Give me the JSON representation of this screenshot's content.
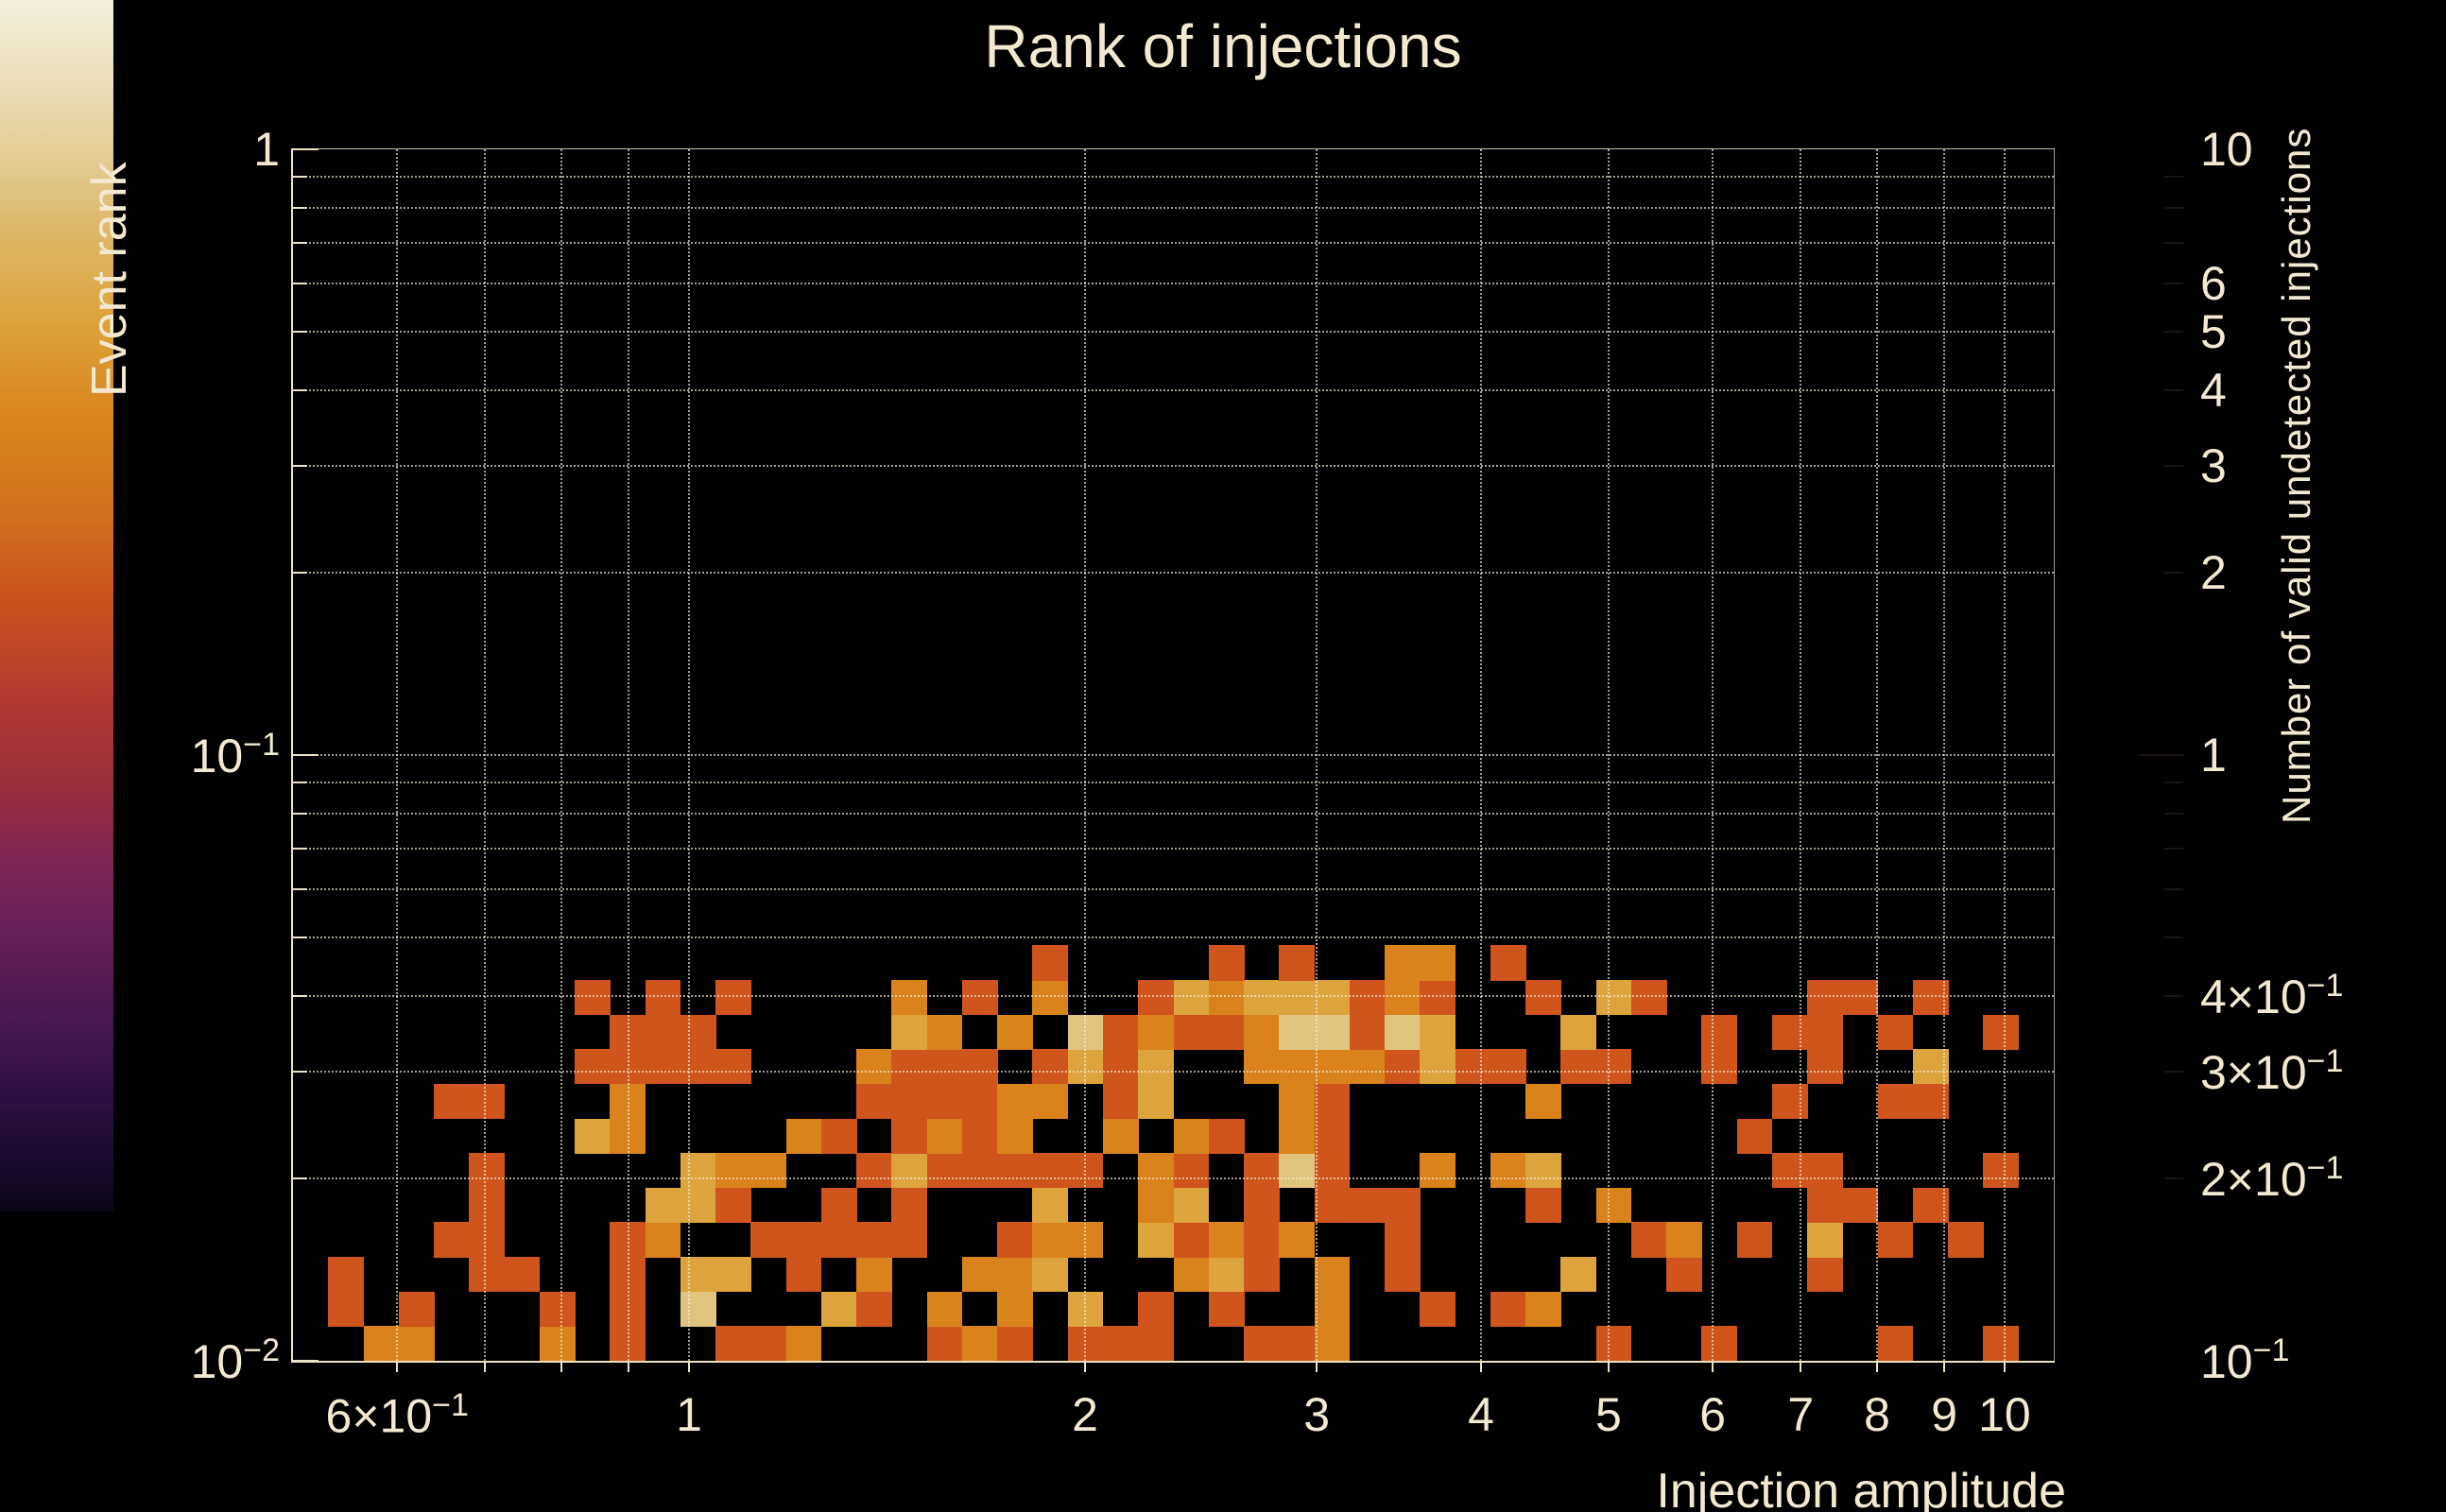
{
  "title": "Rank of injections",
  "axes": {
    "x": {
      "title": "Injection amplitude",
      "scale": "log",
      "min": 0.5,
      "max": 10.9,
      "tick_labels": [
        {
          "v": 0.6,
          "t": "6×10",
          "s": "−1"
        },
        {
          "v": 1,
          "t": "1"
        },
        {
          "v": 2,
          "t": "2"
        },
        {
          "v": 3,
          "t": "3"
        },
        {
          "v": 4,
          "t": "4"
        },
        {
          "v": 5,
          "t": "5"
        },
        {
          "v": 6,
          "t": "6"
        },
        {
          "v": 7,
          "t": "7"
        },
        {
          "v": 8,
          "t": "8"
        },
        {
          "v": 9,
          "t": "9"
        },
        {
          "v": 10,
          "t": "10"
        }
      ],
      "minor_ticks": [
        0.6,
        0.7,
        0.8,
        0.9,
        1,
        2,
        3,
        4,
        5,
        6,
        7,
        8,
        9,
        10
      ],
      "grid": [
        0.6,
        0.7,
        0.8,
        0.9,
        1,
        2,
        3,
        4,
        5,
        6,
        7,
        8,
        9,
        10
      ]
    },
    "y": {
      "title": "Event rank",
      "scale": "log",
      "min": 0.01,
      "max": 1,
      "tick_labels": [
        {
          "v": 1,
          "t": "1"
        },
        {
          "v": 0.1,
          "t": "10",
          "s": "−1"
        },
        {
          "v": 0.01,
          "t": "10",
          "s": "−2"
        }
      ],
      "minor_ticks": [
        0.9,
        0.8,
        0.7,
        0.6,
        0.5,
        0.4,
        0.3,
        0.2,
        0.1,
        0.09,
        0.08,
        0.07,
        0.06,
        0.05,
        0.04,
        0.03,
        0.02
      ],
      "major_ticks": [
        1,
        0.1,
        0.01
      ],
      "grid": [
        0.9,
        0.8,
        0.7,
        0.6,
        0.5,
        0.4,
        0.3,
        0.2,
        0.1,
        0.09,
        0.08,
        0.07,
        0.06,
        0.05,
        0.04,
        0.03,
        0.02
      ]
    }
  },
  "colorbar": {
    "title": "Number of valid undetected injections",
    "scale": "log",
    "min": 0.1,
    "max": 10,
    "tick_labels": [
      {
        "v": 10,
        "t": "10"
      },
      {
        "v": 6,
        "t": "6"
      },
      {
        "v": 5,
        "t": "5"
      },
      {
        "v": 4,
        "t": "4"
      },
      {
        "v": 3,
        "t": "3"
      },
      {
        "v": 2,
        "t": "2"
      },
      {
        "v": 1,
        "t": "1"
      },
      {
        "v": 0.4,
        "t": "4×10",
        "s": "−1"
      },
      {
        "v": 0.3,
        "t": "3×10",
        "s": "−1"
      },
      {
        "v": 0.2,
        "t": "2×10",
        "s": "−1"
      },
      {
        "v": 0.1,
        "t": "10",
        "s": "−1"
      }
    ],
    "minor_ticks": [
      9,
      8,
      7,
      6,
      5,
      4,
      3,
      2,
      0.9,
      0.8,
      0.7,
      0.6,
      0.5,
      0.4,
      0.3,
      0.2
    ],
    "major_ticks": [
      1
    ],
    "gradient": [
      [
        0,
        "#0b0515"
      ],
      [
        4,
        "#1a0b2e"
      ],
      [
        10,
        "#2e1047"
      ],
      [
        15,
        "#471653"
      ],
      [
        24,
        "#6b2158"
      ],
      [
        30,
        "#812751"
      ],
      [
        35,
        "#9c2e3f"
      ],
      [
        42,
        "#b23930"
      ],
      [
        50,
        "#ca5120"
      ],
      [
        57,
        "#d26e1d"
      ],
      [
        65,
        "#d9831b"
      ],
      [
        74,
        "#dca43e"
      ],
      [
        80,
        "#deb463"
      ],
      [
        85,
        "#e0c586"
      ],
      [
        92,
        "#eadcb2"
      ],
      [
        100,
        "#f2eede"
      ]
    ]
  },
  "chart_data": {
    "type": "heatmap",
    "title": "Rank of injections",
    "xlabel": "Injection amplitude",
    "ylabel": "Event rank",
    "zlabel": "Number of valid undetected injections",
    "x_axis": {
      "scale": "log",
      "min": 0.5,
      "max": 10.9,
      "n_bins": 50
    },
    "y_axis": {
      "scale": "log",
      "min": 0.01,
      "max": 1.0,
      "n_bins": 35
    },
    "z_axis": {
      "scale": "log",
      "min": 0.1,
      "max": 10
    },
    "grid": "dotted",
    "count_colors": {
      "1": "#cf551d",
      "2": "#da831c",
      "3": "#dda43e",
      "5": "#e1c57f"
    },
    "cells": [
      [
        2,
        0,
        2
      ],
      [
        3,
        0,
        2
      ],
      [
        7,
        0,
        2
      ],
      [
        9,
        0,
        1
      ],
      [
        12,
        0,
        1
      ],
      [
        1,
        1,
        1
      ],
      [
        3,
        1,
        1
      ],
      [
        7,
        1,
        1
      ],
      [
        9,
        1,
        1
      ],
      [
        11,
        1,
        5
      ],
      [
        1,
        2,
        1
      ],
      [
        5,
        2,
        1
      ],
      [
        6,
        2,
        1
      ],
      [
        9,
        2,
        1
      ],
      [
        11,
        2,
        3
      ],
      [
        12,
        2,
        3
      ],
      [
        4,
        3,
        1
      ],
      [
        5,
        3,
        1
      ],
      [
        9,
        3,
        1
      ],
      [
        10,
        3,
        2
      ],
      [
        5,
        4,
        1
      ],
      [
        10,
        4,
        3
      ],
      [
        11,
        4,
        3
      ],
      [
        12,
        4,
        1
      ],
      [
        5,
        5,
        1
      ],
      [
        11,
        5,
        3
      ],
      [
        12,
        5,
        2
      ],
      [
        8,
        6,
        3
      ],
      [
        9,
        6,
        2
      ],
      [
        4,
        7,
        1
      ],
      [
        5,
        7,
        1
      ],
      [
        9,
        7,
        2
      ],
      [
        8,
        8,
        1
      ],
      [
        9,
        8,
        1
      ],
      [
        10,
        8,
        1
      ],
      [
        11,
        8,
        1
      ],
      [
        12,
        8,
        1
      ],
      [
        9,
        9,
        1
      ],
      [
        10,
        9,
        1
      ],
      [
        11,
        9,
        1
      ],
      [
        8,
        10,
        1
      ],
      [
        10,
        10,
        1
      ],
      [
        12,
        10,
        1
      ],
      [
        13,
        0,
        1
      ],
      [
        14,
        0,
        2
      ],
      [
        18,
        0,
        1
      ],
      [
        19,
        0,
        2
      ],
      [
        20,
        0,
        1
      ],
      [
        22,
        0,
        1
      ],
      [
        23,
        0,
        1
      ],
      [
        24,
        0,
        1
      ],
      [
        15,
        1,
        3
      ],
      [
        16,
        1,
        1
      ],
      [
        18,
        1,
        2
      ],
      [
        20,
        1,
        2
      ],
      [
        22,
        1,
        3
      ],
      [
        24,
        1,
        1
      ],
      [
        14,
        2,
        1
      ],
      [
        16,
        2,
        2
      ],
      [
        19,
        2,
        2
      ],
      [
        20,
        2,
        2
      ],
      [
        21,
        2,
        3
      ],
      [
        25,
        2,
        2
      ],
      [
        13,
        3,
        1
      ],
      [
        14,
        3,
        1
      ],
      [
        15,
        3,
        1
      ],
      [
        16,
        3,
        1
      ],
      [
        17,
        3,
        1
      ],
      [
        20,
        3,
        1
      ],
      [
        21,
        3,
        2
      ],
      [
        22,
        3,
        2
      ],
      [
        24,
        3,
        3
      ],
      [
        25,
        3,
        1
      ],
      [
        15,
        4,
        1
      ],
      [
        17,
        4,
        1
      ],
      [
        21,
        4,
        3
      ],
      [
        24,
        4,
        2
      ],
      [
        25,
        4,
        3
      ],
      [
        13,
        5,
        2
      ],
      [
        16,
        5,
        1
      ],
      [
        17,
        5,
        3
      ],
      [
        18,
        5,
        1
      ],
      [
        19,
        5,
        1
      ],
      [
        20,
        5,
        1
      ],
      [
        21,
        5,
        1
      ],
      [
        22,
        5,
        1
      ],
      [
        24,
        5,
        2
      ],
      [
        25,
        5,
        1
      ],
      [
        14,
        6,
        2
      ],
      [
        15,
        6,
        1
      ],
      [
        17,
        6,
        1
      ],
      [
        18,
        6,
        2
      ],
      [
        19,
        6,
        1
      ],
      [
        20,
        6,
        2
      ],
      [
        23,
        6,
        2
      ],
      [
        25,
        6,
        2
      ],
      [
        16,
        7,
        1
      ],
      [
        17,
        7,
        1
      ],
      [
        18,
        7,
        1
      ],
      [
        19,
        7,
        1
      ],
      [
        20,
        7,
        2
      ],
      [
        21,
        7,
        2
      ],
      [
        23,
        7,
        1
      ],
      [
        24,
        7,
        3
      ],
      [
        16,
        8,
        2
      ],
      [
        17,
        8,
        1
      ],
      [
        18,
        8,
        1
      ],
      [
        19,
        8,
        1
      ],
      [
        21,
        8,
        1
      ],
      [
        22,
        8,
        3
      ],
      [
        23,
        8,
        1
      ],
      [
        24,
        8,
        3
      ],
      [
        17,
        9,
        3
      ],
      [
        18,
        9,
        2
      ],
      [
        20,
        9,
        2
      ],
      [
        22,
        9,
        5
      ],
      [
        23,
        9,
        1
      ],
      [
        24,
        9,
        2
      ],
      [
        25,
        9,
        1
      ],
      [
        17,
        10,
        2
      ],
      [
        19,
        10,
        1
      ],
      [
        21,
        10,
        2
      ],
      [
        24,
        10,
        1
      ],
      [
        25,
        10,
        3
      ],
      [
        21,
        11,
        1
      ],
      [
        27,
        0,
        1
      ],
      [
        28,
        0,
        1
      ],
      [
        29,
        0,
        2
      ],
      [
        37,
        0,
        1
      ],
      [
        26,
        1,
        1
      ],
      [
        29,
        1,
        2
      ],
      [
        32,
        1,
        1
      ],
      [
        34,
        1,
        1
      ],
      [
        35,
        1,
        2
      ],
      [
        26,
        2,
        3
      ],
      [
        27,
        2,
        1
      ],
      [
        29,
        2,
        2
      ],
      [
        31,
        2,
        1
      ],
      [
        36,
        2,
        3
      ],
      [
        26,
        3,
        2
      ],
      [
        27,
        3,
        1
      ],
      [
        28,
        3,
        2
      ],
      [
        31,
        3,
        1
      ],
      [
        38,
        3,
        1
      ],
      [
        27,
        4,
        1
      ],
      [
        29,
        4,
        1
      ],
      [
        30,
        4,
        1
      ],
      [
        31,
        4,
        1
      ],
      [
        35,
        4,
        1
      ],
      [
        37,
        4,
        2
      ],
      [
        27,
        5,
        1
      ],
      [
        28,
        5,
        5
      ],
      [
        29,
        5,
        1
      ],
      [
        32,
        5,
        2
      ],
      [
        34,
        5,
        2
      ],
      [
        35,
        5,
        3
      ],
      [
        26,
        6,
        1
      ],
      [
        28,
        6,
        2
      ],
      [
        29,
        6,
        1
      ],
      [
        28,
        7,
        2
      ],
      [
        29,
        7,
        1
      ],
      [
        35,
        7,
        2
      ],
      [
        27,
        8,
        2
      ],
      [
        28,
        8,
        2
      ],
      [
        29,
        8,
        2
      ],
      [
        30,
        8,
        2
      ],
      [
        31,
        8,
        1
      ],
      [
        32,
        8,
        3
      ],
      [
        33,
        8,
        1
      ],
      [
        34,
        8,
        1
      ],
      [
        36,
        8,
        1
      ],
      [
        37,
        8,
        1
      ],
      [
        26,
        9,
        1
      ],
      [
        27,
        9,
        2
      ],
      [
        28,
        9,
        5
      ],
      [
        29,
        9,
        5
      ],
      [
        30,
        9,
        1
      ],
      [
        31,
        9,
        5
      ],
      [
        32,
        9,
        3
      ],
      [
        36,
        9,
        3
      ],
      [
        26,
        10,
        2
      ],
      [
        27,
        10,
        3
      ],
      [
        28,
        10,
        3
      ],
      [
        29,
        10,
        3
      ],
      [
        30,
        10,
        1
      ],
      [
        31,
        10,
        2
      ],
      [
        32,
        10,
        1
      ],
      [
        35,
        10,
        1
      ],
      [
        37,
        10,
        3
      ],
      [
        38,
        10,
        1
      ],
      [
        26,
        11,
        1
      ],
      [
        28,
        11,
        1
      ],
      [
        31,
        11,
        2
      ],
      [
        32,
        11,
        2
      ],
      [
        34,
        11,
        1
      ],
      [
        40,
        0,
        1
      ],
      [
        45,
        0,
        1
      ],
      [
        48,
        0,
        1
      ],
      [
        39,
        2,
        1
      ],
      [
        43,
        2,
        1
      ],
      [
        39,
        3,
        2
      ],
      [
        41,
        3,
        1
      ],
      [
        43,
        3,
        3
      ],
      [
        45,
        3,
        1
      ],
      [
        47,
        3,
        1
      ],
      [
        43,
        4,
        1
      ],
      [
        44,
        4,
        1
      ],
      [
        46,
        4,
        1
      ],
      [
        42,
        5,
        1
      ],
      [
        43,
        5,
        1
      ],
      [
        48,
        5,
        1
      ],
      [
        41,
        6,
        1
      ],
      [
        42,
        7,
        1
      ],
      [
        45,
        7,
        1
      ],
      [
        46,
        7,
        1
      ],
      [
        40,
        8,
        1
      ],
      [
        43,
        8,
        1
      ],
      [
        46,
        8,
        3
      ],
      [
        40,
        9,
        1
      ],
      [
        42,
        9,
        1
      ],
      [
        43,
        9,
        1
      ],
      [
        45,
        9,
        1
      ],
      [
        48,
        9,
        1
      ],
      [
        43,
        10,
        1
      ],
      [
        44,
        10,
        1
      ],
      [
        46,
        10,
        1
      ]
    ]
  }
}
